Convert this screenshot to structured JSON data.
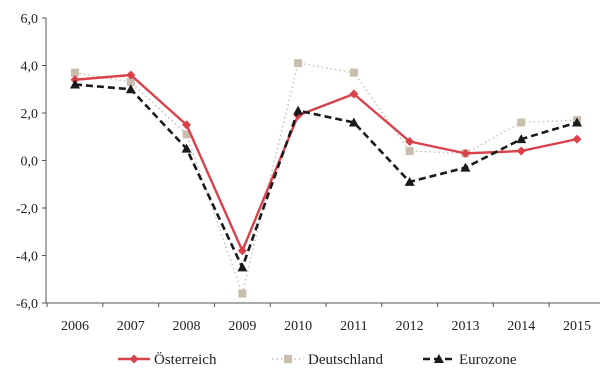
{
  "chart_data": {
    "type": "line",
    "title": "",
    "xlabel": "",
    "ylabel": "",
    "x": [
      "2006",
      "2007",
      "2008",
      "2009",
      "2010",
      "2011",
      "2012",
      "2013",
      "2014",
      "2015"
    ],
    "ylim": [
      -6.0,
      6.0
    ],
    "y_ticks": [
      "-6,0",
      "-4,0",
      "-2,0",
      "0,0",
      "2,0",
      "4,0",
      "6,0"
    ],
    "grid": false,
    "legend_position": "bottom",
    "series": [
      {
        "name": "Österreich",
        "color": "#d9414b",
        "style": "solid",
        "marker": "diamond",
        "values": [
          3.4,
          3.6,
          1.5,
          -3.8,
          1.9,
          2.8,
          0.8,
          0.3,
          0.4,
          0.9
        ]
      },
      {
        "name": "Deutschland",
        "color": "#c8beae",
        "style": "dotted",
        "marker": "square",
        "values": [
          3.7,
          3.3,
          1.1,
          -5.6,
          4.1,
          3.7,
          0.4,
          0.3,
          1.6,
          1.7
        ]
      },
      {
        "name": "Eurozone",
        "color": "#1a1a1a",
        "style": "dashed",
        "marker": "triangle",
        "values": [
          3.2,
          3.0,
          0.5,
          -4.5,
          2.1,
          1.6,
          -0.9,
          -0.3,
          0.9,
          1.6
        ]
      }
    ]
  }
}
